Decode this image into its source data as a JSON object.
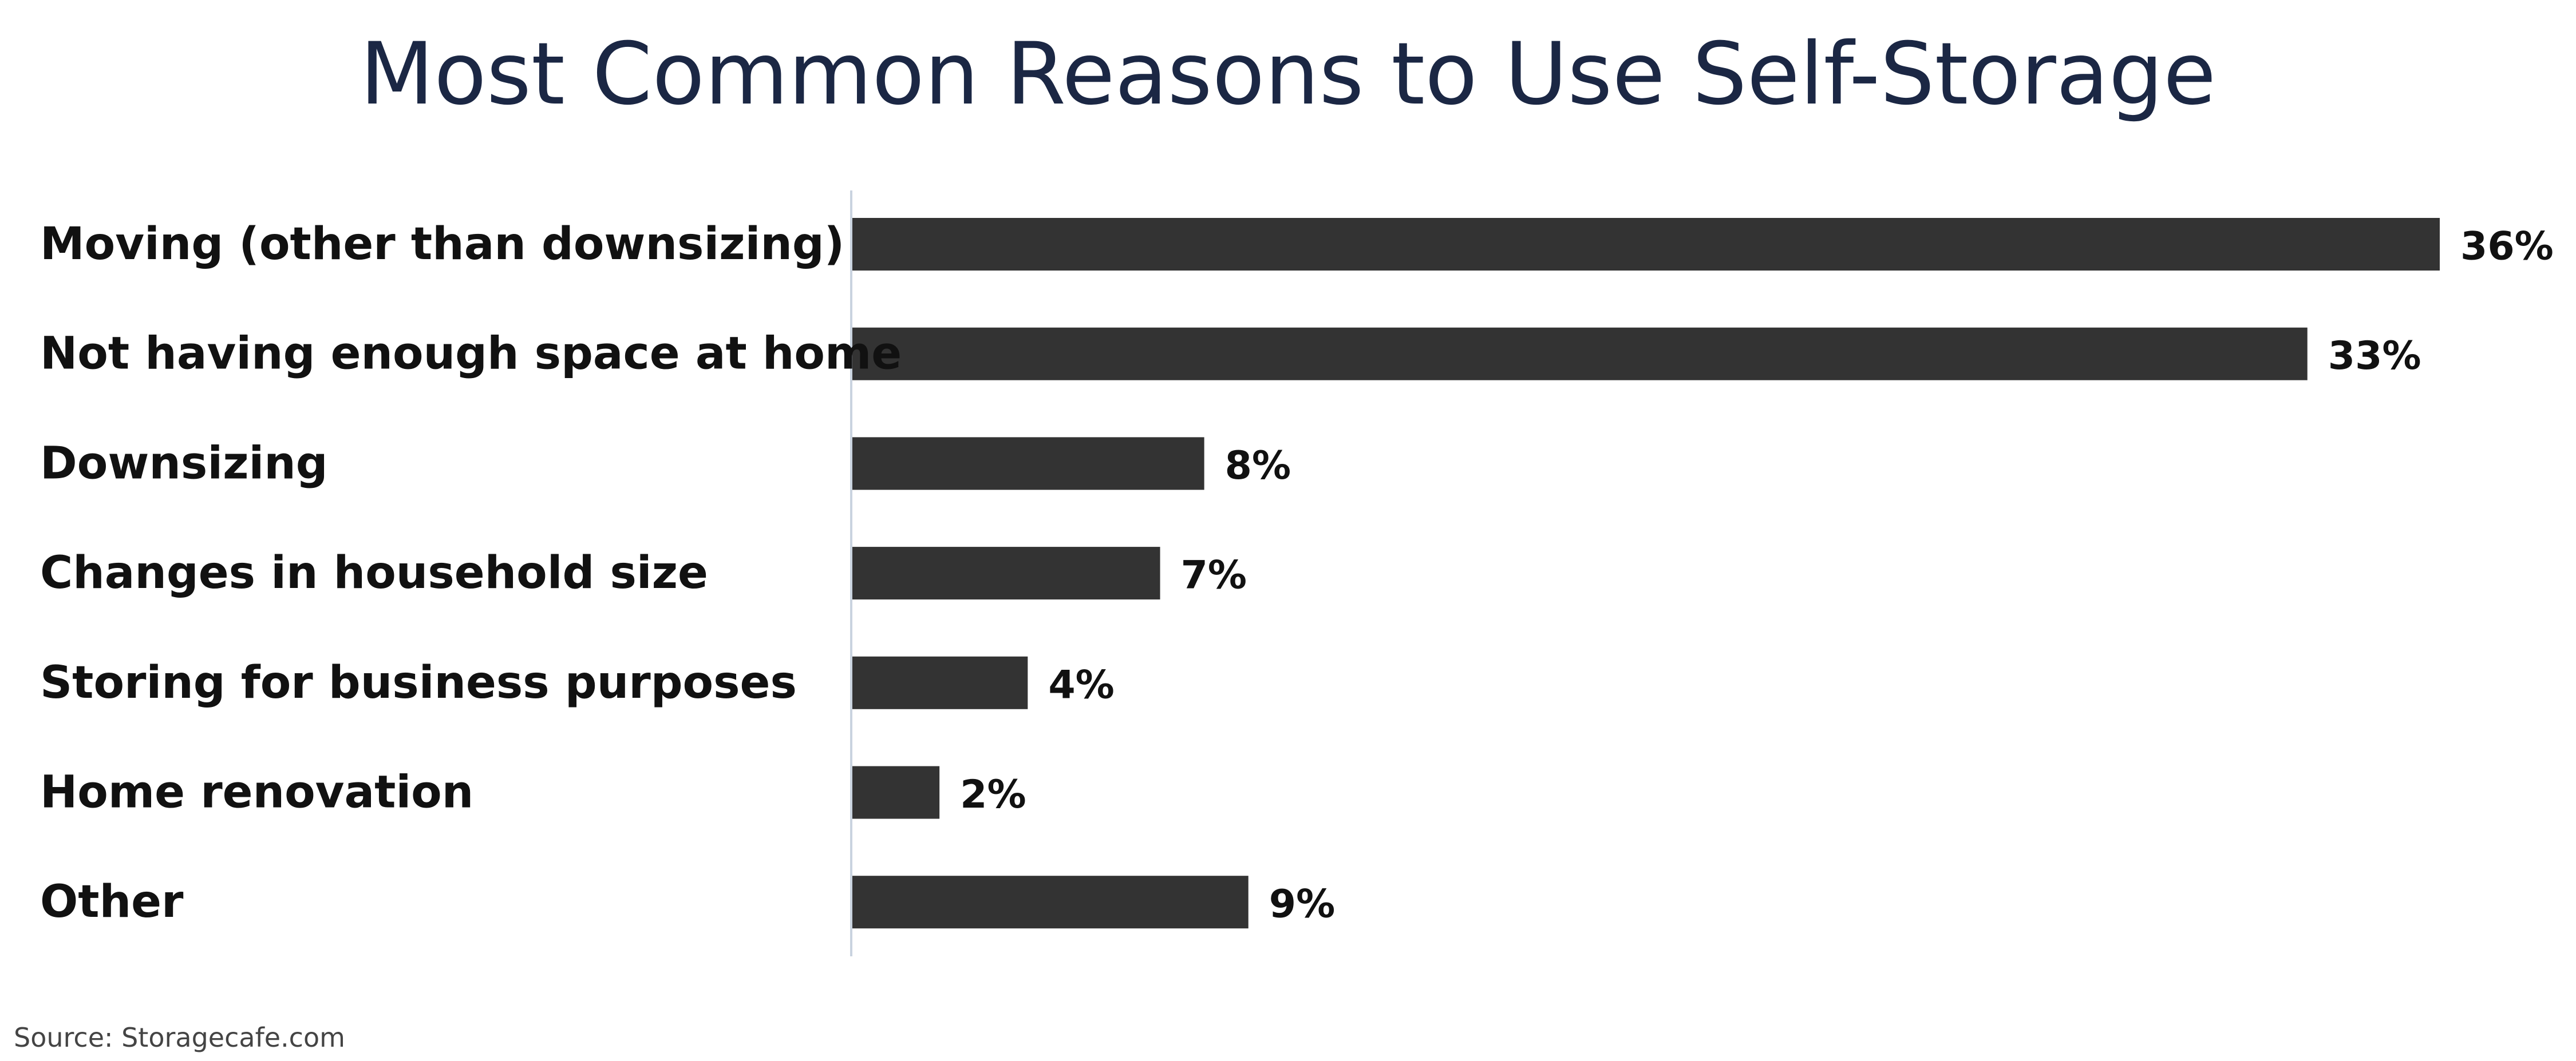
{
  "chart_data": {
    "type": "bar",
    "orientation": "horizontal",
    "title": "Most Common Reasons to Use Self-Storage",
    "categories": [
      "Moving (other than downsizing)",
      "Not having enough space at home",
      "Downsizing",
      "Changes in household size",
      "Storing for business purposes",
      "Home renovation",
      "Other"
    ],
    "values": [
      36,
      33,
      8,
      7,
      4,
      2,
      9
    ],
    "value_labels": [
      "36%",
      "33%",
      "8%",
      "7%",
      "4%",
      "2%",
      "9%"
    ],
    "unit": "%",
    "xlim": [
      0,
      36
    ],
    "grid": false,
    "legend": "none",
    "colors": {
      "bar": "#333333",
      "title": "#1b2744",
      "axis": "#c9d3df",
      "label": "#111111"
    }
  },
  "source": "Source: Storagecafe.com"
}
